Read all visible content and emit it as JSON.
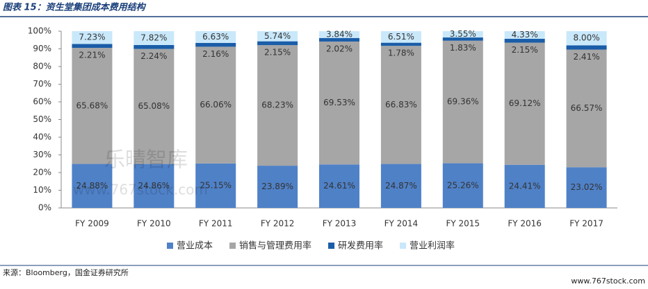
{
  "chart_data": {
    "type": "stacked_bar",
    "title": "图表 15：资生堂集团成本费用结构",
    "source": "来源：Bloomberg，国金证券研究所",
    "watermark": [
      "乐晴智库",
      "www.767stock.com"
    ],
    "footer_mark": "www.767stock.com",
    "categories": [
      "FY 2009",
      "FY 2010",
      "FY 2011",
      "FY 2012",
      "FY 2013",
      "FY 2014",
      "FY 2015",
      "FY 2016",
      "FY 2017"
    ],
    "series": [
      {
        "name": "营业成本",
        "color": "#4f81c7",
        "values": [
          24.88,
          24.86,
          25.15,
          23.89,
          24.61,
          24.87,
          25.26,
          24.41,
          23.02
        ],
        "value_labels": [
          "24.88%",
          "24.86%",
          "25.15%",
          "23.89%",
          "24.61%",
          "24.87%",
          "25.26%",
          "24.41%",
          "23.02%"
        ]
      },
      {
        "name": "销售与管理费用率",
        "color": "#a6a6a6",
        "values": [
          65.68,
          65.08,
          66.06,
          68.23,
          69.53,
          66.83,
          69.36,
          69.12,
          66.57
        ],
        "value_labels": [
          "65.68%",
          "65.08%",
          "66.06%",
          "68.23%",
          "69.53%",
          "66.83%",
          "69.36%",
          "69.12%",
          "66.57%"
        ]
      },
      {
        "name": "研发费用率",
        "color": "#1a5da8",
        "values": [
          2.21,
          2.24,
          2.16,
          2.15,
          2.02,
          1.78,
          1.83,
          2.15,
          2.41
        ],
        "value_labels": [
          "2.21%",
          "2.24%",
          "2.16%",
          "2.15%",
          "2.02%",
          "1.78%",
          "1.83%",
          "2.15%",
          "2.41%"
        ]
      },
      {
        "name": "营业利润率",
        "color": "#c9e8fa",
        "values": [
          7.23,
          7.82,
          6.63,
          5.74,
          3.84,
          6.51,
          3.55,
          4.33,
          8.0
        ],
        "value_labels": [
          "7.23%",
          "7.82%",
          "6.63%",
          "5.74%",
          "3.84%",
          "6.51%",
          "3.55%",
          "4.33%",
          "8.00%"
        ]
      }
    ],
    "ylim": [
      0,
      100
    ],
    "yticks": [
      {
        "value": 0,
        "label": "0%"
      },
      {
        "value": 10,
        "label": "10%"
      },
      {
        "value": 20,
        "label": "20%"
      },
      {
        "value": 30,
        "label": "30%"
      },
      {
        "value": 40,
        "label": "40%"
      },
      {
        "value": 50,
        "label": "50%"
      },
      {
        "value": 60,
        "label": "60%"
      },
      {
        "value": 70,
        "label": "70%"
      },
      {
        "value": 80,
        "label": "80%"
      },
      {
        "value": 90,
        "label": "90%"
      },
      {
        "value": 100,
        "label": "100%"
      }
    ],
    "legend": "bottom"
  }
}
